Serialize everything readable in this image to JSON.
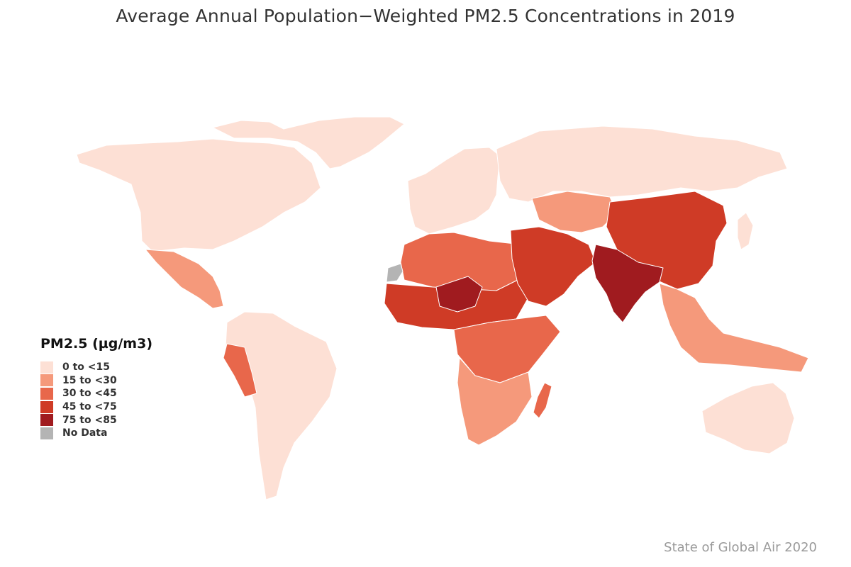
{
  "title": "Average Annual Population−Weighted PM2.5 Concentrations in 2019",
  "source": "State of Global Air 2020",
  "legend": {
    "title": "PM2.5 (µg/m3)",
    "items": [
      {
        "label": "0 to <15",
        "color": "#fde0d5"
      },
      {
        "label": "15 to <30",
        "color": "#f5997b"
      },
      {
        "label": "30 to <45",
        "color": "#e8674b"
      },
      {
        "label": "45 to <75",
        "color": "#cf3b26"
      },
      {
        "label": "75 to <85",
        "color": "#a01b1f"
      },
      {
        "label": "No Data",
        "color": "#b4b4b4"
      }
    ]
  },
  "regions": [
    {
      "name": "north-america",
      "class": "0 to <15"
    },
    {
      "name": "greenland",
      "class": "0 to <15"
    },
    {
      "name": "mexico-central-america",
      "class": "15 to <30"
    },
    {
      "name": "south-america",
      "class": "0 to <15"
    },
    {
      "name": "peru",
      "class": "30 to <45"
    },
    {
      "name": "europe",
      "class": "0 to <15"
    },
    {
      "name": "russia",
      "class": "0 to <15"
    },
    {
      "name": "north-africa",
      "class": "30 to <45"
    },
    {
      "name": "sahel",
      "class": "45 to <75"
    },
    {
      "name": "niger",
      "class": "75 to <85"
    },
    {
      "name": "central-africa",
      "class": "30 to <45"
    },
    {
      "name": "southern-africa",
      "class": "15 to <30"
    },
    {
      "name": "madagascar",
      "class": "30 to <45"
    },
    {
      "name": "middle-east",
      "class": "45 to <75"
    },
    {
      "name": "central-asia",
      "class": "15 to <30"
    },
    {
      "name": "china",
      "class": "45 to <75"
    },
    {
      "name": "india",
      "class": "75 to <85"
    },
    {
      "name": "southeast-asia",
      "class": "15 to <30"
    },
    {
      "name": "australia",
      "class": "0 to <15"
    },
    {
      "name": "japan",
      "class": "0 to <15"
    },
    {
      "name": "western-sahara",
      "class": "No Data"
    }
  ]
}
